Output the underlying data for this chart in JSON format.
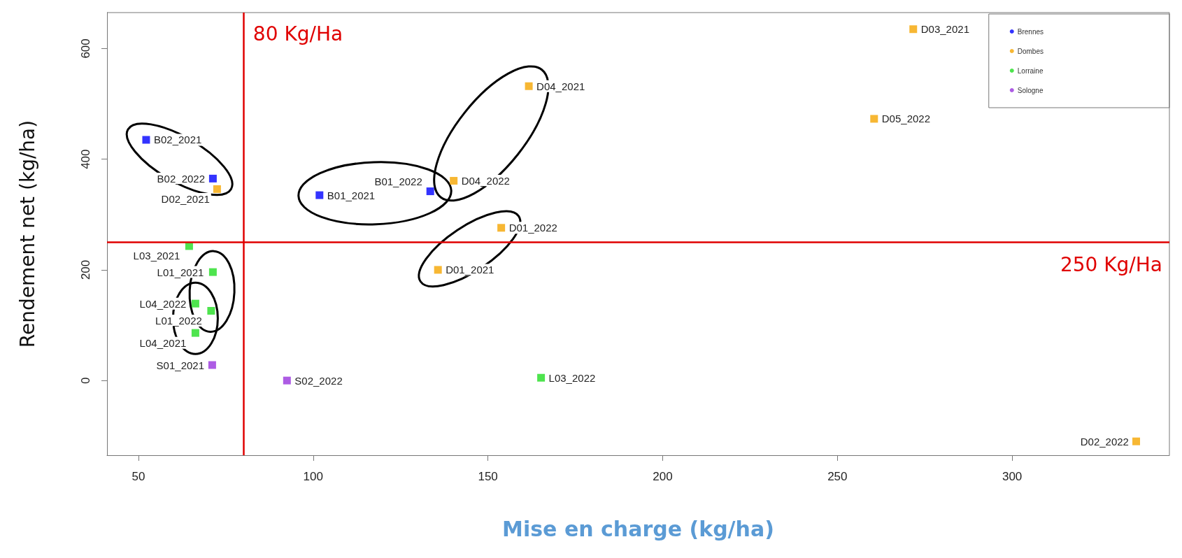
{
  "chart_data": {
    "type": "scatter",
    "xlabel": "Mise en charge (kg/ha)",
    "ylabel": "Rendement net (kg/ha)",
    "xlim": [
      41,
      345
    ],
    "xticks": [
      50,
      100,
      150,
      200,
      250,
      300
    ],
    "ylim": [
      -135,
      665
    ],
    "yticks": [
      0,
      200,
      400,
      600
    ],
    "grid": false,
    "legend": "top right",
    "marker": "square",
    "series": [
      {
        "name": "Brennes",
        "color": "#0000ff",
        "x": [
          52.2,
          71.3,
          101.8,
          133.5
        ],
        "values": [
          435,
          365,
          335,
          342
        ]
      },
      {
        "name": "Dombes",
        "color": "#f5a500",
        "x": [
          72.5,
          140.2,
          161.7,
          153.8,
          135.7,
          271.7,
          260.5,
          335.5
        ],
        "values": [
          346,
          361,
          532,
          276,
          200,
          635,
          473,
          -110
        ]
      },
      {
        "name": "Lorraine",
        "color": "#22dd22",
        "x": [
          64.5,
          71.3,
          66.3,
          70.8,
          66.3,
          165.2
        ],
        "values": [
          243,
          196,
          139,
          126,
          86,
          5
        ]
      },
      {
        "name": "Sologne",
        "color": "#9933dd",
        "x": [
          71.1,
          92.5
        ],
        "values": [
          28,
          0
        ]
      }
    ],
    "ref_lines": [
      {
        "axis": "x",
        "value": 80,
        "label": "80 Kg/Ha",
        "color": "#e00000"
      },
      {
        "axis": "y",
        "value": 250,
        "label": "250 Kg/Ha",
        "color": "#e00000"
      }
    ],
    "annotations": [
      {
        "text": "B02_2021",
        "x": 52.2,
        "y": 435
      },
      {
        "text": "B02_2022",
        "x": 71.3,
        "y": 365
      },
      {
        "text": "B01_2021",
        "x": 101.8,
        "y": 335
      },
      {
        "text": "B01_2022",
        "x": 133.5,
        "y": 342
      },
      {
        "text": "D02_2021",
        "x": 72.5,
        "y": 346
      },
      {
        "text": "D04_2022",
        "x": 140.2,
        "y": 361
      },
      {
        "text": "D04_2021",
        "x": 161.7,
        "y": 532
      },
      {
        "text": "D01_2022",
        "x": 153.8,
        "y": 276
      },
      {
        "text": "D01_2021",
        "x": 135.7,
        "y": 200
      },
      {
        "text": "D03_2021",
        "x": 271.7,
        "y": 635
      },
      {
        "text": "D05_2022",
        "x": 260.5,
        "y": 473
      },
      {
        "text": "D02_2022",
        "x": 335.5,
        "y": -110
      },
      {
        "text": "L03_2021",
        "x": 64.5,
        "y": 243
      },
      {
        "text": "L01_2021",
        "x": 71.3,
        "y": 196
      },
      {
        "text": "L04_2022",
        "x": 66.3,
        "y": 139
      },
      {
        "text": "L01_2022",
        "x": 70.8,
        "y": 126
      },
      {
        "text": "L04_2021",
        "x": 66.3,
        "y": 86
      },
      {
        "text": "L03_2022",
        "x": 165.2,
        "y": 5
      },
      {
        "text": "S01_2021",
        "x": 71.1,
        "y": 28
      },
      {
        "text": "S02_2022",
        "x": 92.5,
        "y": 0
      }
    ]
  }
}
